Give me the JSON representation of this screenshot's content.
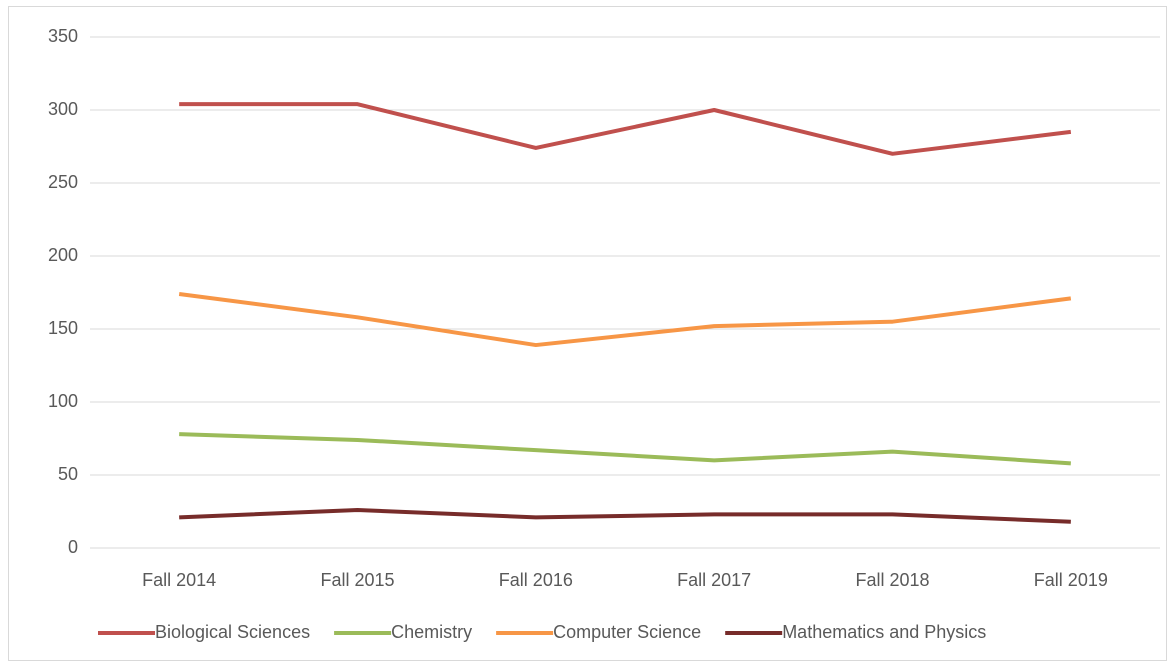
{
  "chart_data": {
    "type": "line",
    "categories": [
      "Fall 2014",
      "Fall 2015",
      "Fall 2016",
      "Fall 2017",
      "Fall 2018",
      "Fall 2019"
    ],
    "series": [
      {
        "name": "Biological Sciences",
        "color": "#c0504d",
        "values": [
          304,
          304,
          274,
          300,
          270,
          285
        ]
      },
      {
        "name": "Chemistry",
        "color": "#9bbb59",
        "values": [
          78,
          74,
          67,
          60,
          66,
          58
        ]
      },
      {
        "name": "Computer Science",
        "color": "#f79646",
        "values": [
          174,
          158,
          139,
          152,
          155,
          171
        ]
      },
      {
        "name": "Mathematics and Physics",
        "color": "#772c2a",
        "values": [
          21,
          26,
          21,
          23,
          23,
          18
        ]
      }
    ],
    "ylim": [
      0,
      350
    ],
    "yticks": [
      0,
      50,
      100,
      150,
      200,
      250,
      300,
      350
    ],
    "grid": true,
    "legend": "bottom"
  }
}
